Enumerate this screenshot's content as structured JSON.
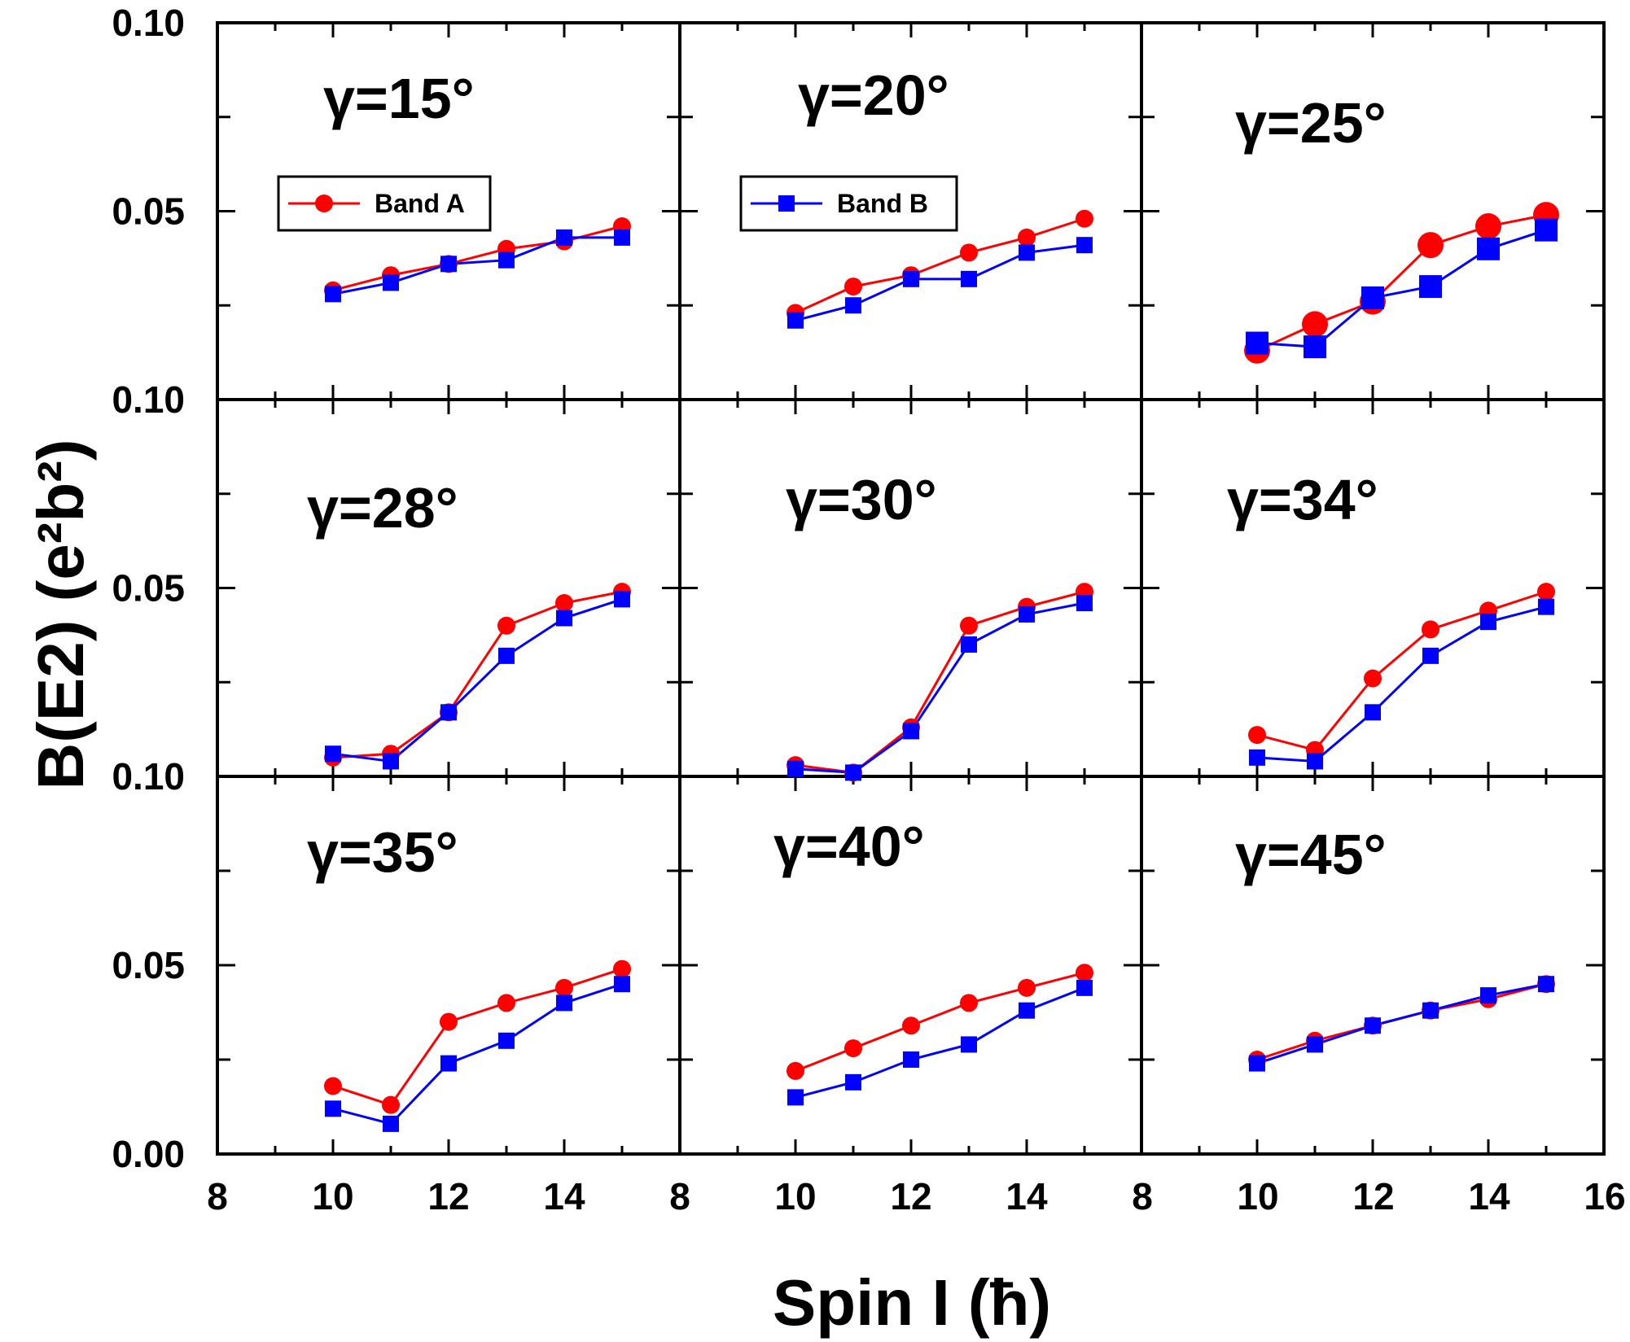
{
  "colors": {
    "band_a": "#ff0000",
    "band_b": "#0000ff",
    "axis": "#000000",
    "background": "#ffffff"
  },
  "chart_data": {
    "type": "line",
    "layout": "3x3 panel grid, shared axes",
    "xlabel": "Spin I (ħ)",
    "ylabel": "B(E2) (e²b²)",
    "xlim": [
      8,
      16
    ],
    "ylim": [
      0.0,
      0.1
    ],
    "x_tick_labels": [
      "8",
      "10",
      "12",
      "14",
      "8",
      "10",
      "12",
      "14",
      "8",
      "10",
      "12",
      "14",
      "16"
    ],
    "y_tick_labels_per_row": [
      [
        "0.10",
        "0.05"
      ],
      [
        "0.10",
        "0.05"
      ],
      [
        "0.10",
        "0.05",
        "0.00"
      ]
    ],
    "y_minor_tick_labels": [
      "0.10",
      "0.05",
      "0.00"
    ],
    "legend": [
      {
        "name": "Band A",
        "color": "#ff0000",
        "marker": "circle",
        "panel": "top-left"
      },
      {
        "name": "Band B",
        "color": "#0000ff",
        "marker": "square",
        "panel": "top-middle"
      }
    ],
    "x": [
      10,
      11,
      12,
      13,
      14,
      15
    ],
    "panels": [
      {
        "title": "γ=15°",
        "band_a": [
          0.029,
          0.033,
          0.036,
          0.04,
          0.042,
          0.046
        ],
        "band_b": [
          0.028,
          0.031,
          0.036,
          0.037,
          0.043,
          0.043
        ]
      },
      {
        "title": "γ=20°",
        "band_a": [
          0.023,
          0.03,
          0.033,
          0.039,
          0.043,
          0.048
        ],
        "band_b": [
          0.021,
          0.025,
          0.032,
          0.032,
          0.039,
          0.041
        ]
      },
      {
        "title": "γ=25°",
        "band_a": [
          0.013,
          0.02,
          0.026,
          0.041,
          0.046,
          0.049
        ],
        "band_b": [
          0.015,
          0.014,
          0.027,
          0.03,
          0.04,
          0.045
        ]
      },
      {
        "title": "γ=28°",
        "band_a": [
          0.005,
          0.006,
          0.017,
          0.04,
          0.046,
          0.049
        ],
        "band_b": [
          0.006,
          0.004,
          0.017,
          0.032,
          0.042,
          0.047
        ]
      },
      {
        "title": "γ=30°",
        "band_a": [
          0.003,
          0.001,
          0.013,
          0.04,
          0.045,
          0.049
        ],
        "band_b": [
          0.002,
          0.001,
          0.012,
          0.035,
          0.043,
          0.046
        ]
      },
      {
        "title": "γ=34°",
        "band_a": [
          0.011,
          0.007,
          0.026,
          0.039,
          0.044,
          0.049
        ],
        "band_b": [
          0.005,
          0.004,
          0.017,
          0.032,
          0.041,
          0.045
        ]
      },
      {
        "title": "γ=35°",
        "band_a": [
          0.018,
          0.013,
          0.035,
          0.04,
          0.044,
          0.049
        ],
        "band_b": [
          0.012,
          0.008,
          0.024,
          0.03,
          0.04,
          0.045
        ]
      },
      {
        "title": "γ=40°",
        "band_a": [
          0.022,
          0.028,
          0.034,
          0.04,
          0.044,
          0.048
        ],
        "band_b": [
          0.015,
          0.019,
          0.025,
          0.029,
          0.038,
          0.044
        ]
      },
      {
        "title": "γ=45°",
        "band_a": [
          0.025,
          0.03,
          0.034,
          0.038,
          0.041,
          0.045
        ],
        "band_b": [
          0.024,
          0.029,
          0.034,
          0.038,
          0.042,
          0.045
        ]
      }
    ]
  }
}
